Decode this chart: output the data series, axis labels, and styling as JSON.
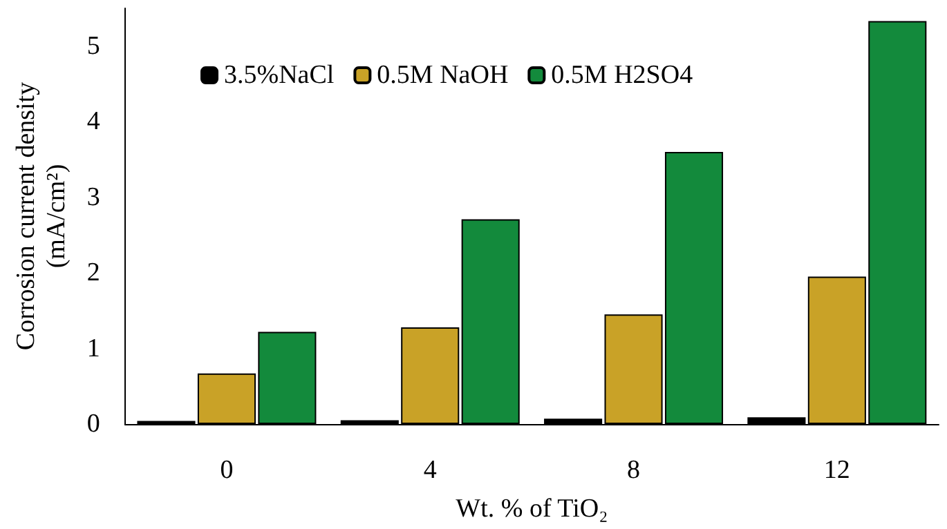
{
  "chart_data": {
    "type": "bar",
    "xlabel": "Wt. % of TiO₂",
    "ylabel": "Corrosion current density\n(mA/cm²)",
    "categories": [
      "0",
      "4",
      "8",
      "12"
    ],
    "series": [
      {
        "name": "3.5%NaCl",
        "color": "#000000",
        "values": [
          0.04,
          0.05,
          0.07,
          0.09
        ]
      },
      {
        "name": "0.5M NaOH",
        "color": "#c9a227",
        "values": [
          0.67,
          1.28,
          1.45,
          1.95
        ]
      },
      {
        "name": "0.5M H2SO4",
        "color": "#138a3c",
        "values": [
          1.22,
          2.71,
          3.6,
          5.33
        ]
      }
    ],
    "ylim": [
      0,
      5.5
    ],
    "yticks": [
      0,
      1,
      2,
      3,
      4,
      5
    ],
    "grid": false,
    "legend": "top"
  }
}
